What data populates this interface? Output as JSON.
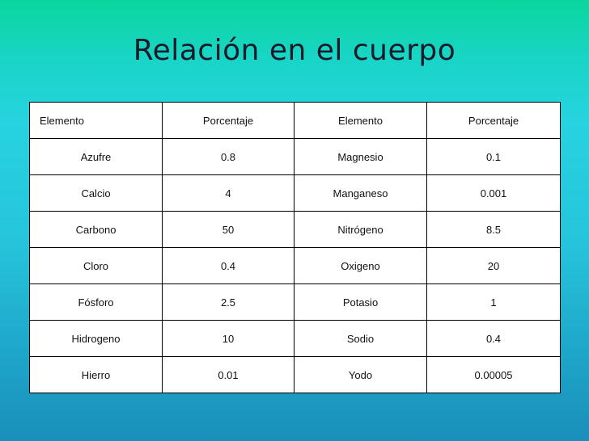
{
  "title": "Relación en el cuerpo",
  "table": {
    "headers": [
      "Elemento",
      "Porcentaje",
      "Elemento",
      "Porcentaje"
    ],
    "rows": [
      [
        "Azufre",
        "0.8",
        "Magnesio",
        "0.1"
      ],
      [
        "Calcio",
        "4",
        "Manganeso",
        "0.001"
      ],
      [
        "Carbono",
        "50",
        "Nitrógeno",
        "8.5"
      ],
      [
        "Cloro",
        "0.4",
        "Oxigeno",
        "20"
      ],
      [
        "Fósforo",
        "2.5",
        "Potasio",
        "1"
      ],
      [
        "Hidrogeno",
        "10",
        "Sodio",
        "0.4"
      ],
      [
        "Hierro",
        "0.01",
        "Yodo",
        "0.00005"
      ]
    ]
  }
}
